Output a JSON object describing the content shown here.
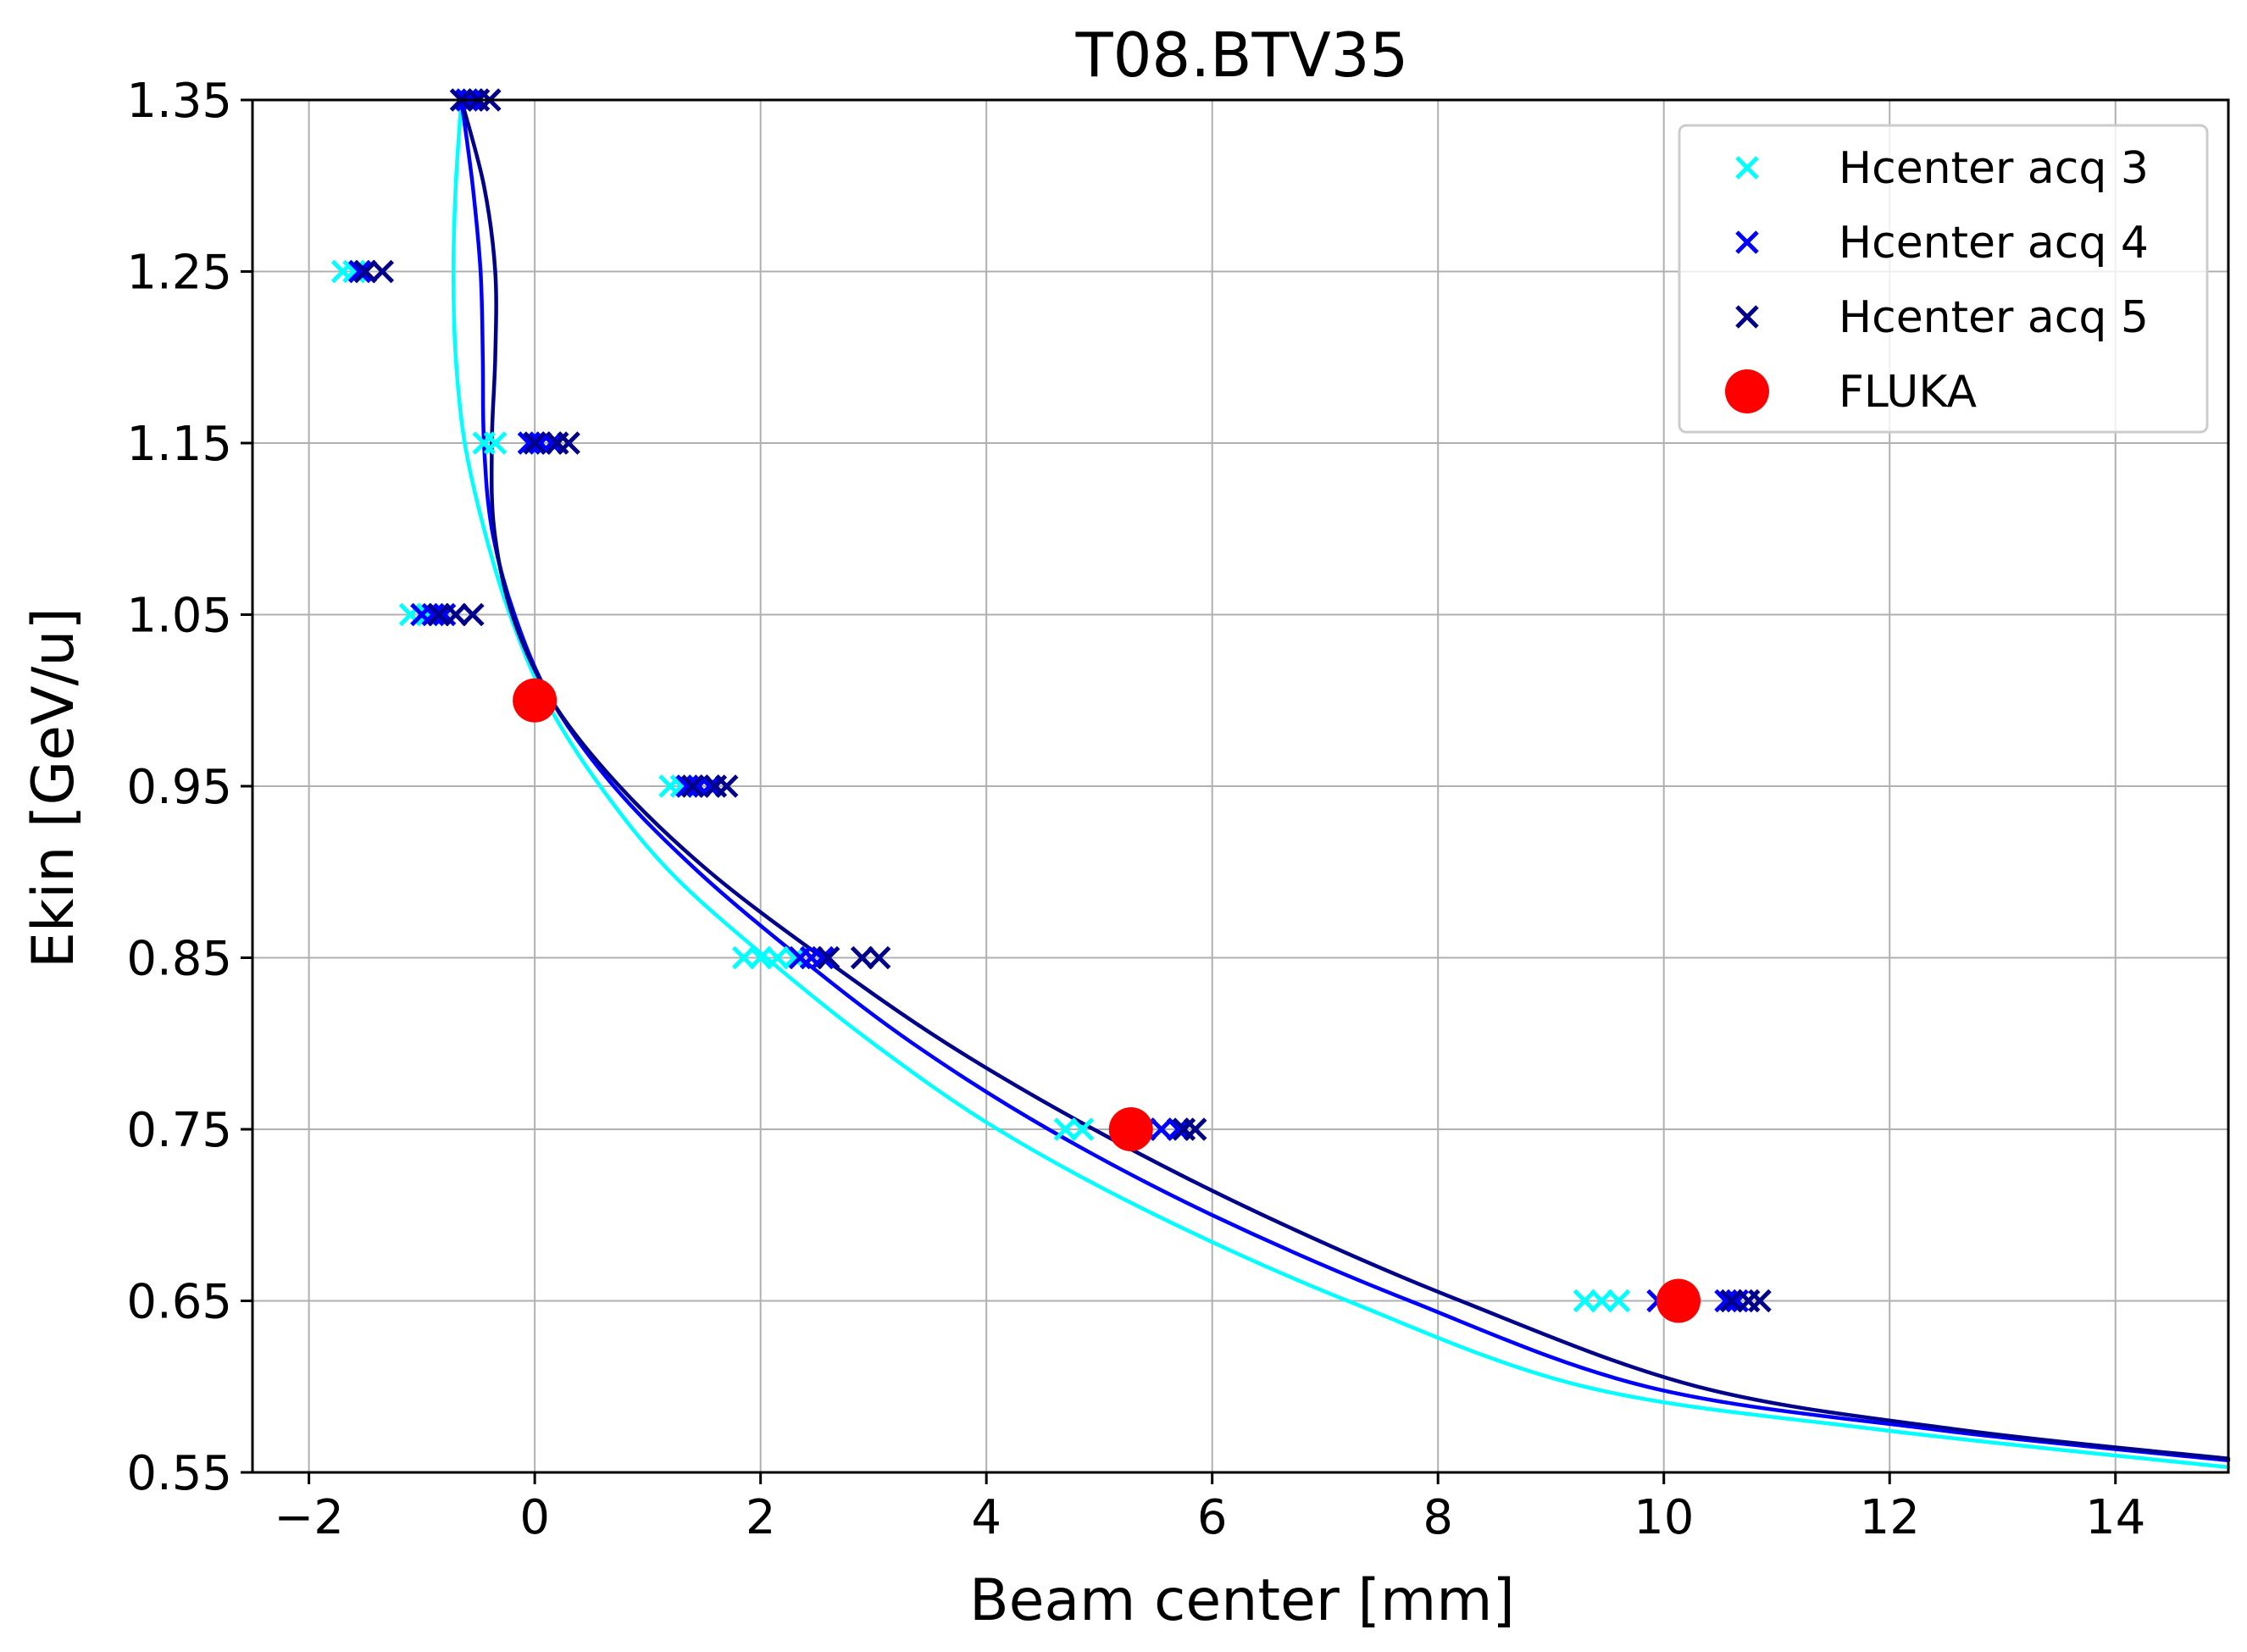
{
  "chart_data": {
    "type": "scatter",
    "title": "T08.BTV35",
    "xlabel": "Beam center [mm]",
    "ylabel": "Ekin [GeV/u]",
    "xlim": [
      -2.5,
      15
    ],
    "ylim": [
      0.55,
      1.35
    ],
    "grid": true,
    "legend_position": "top-right",
    "x_ticks": [
      -2,
      0,
      2,
      4,
      6,
      8,
      10,
      12,
      14
    ],
    "x_tick_labels": [
      "−2",
      "0",
      "2",
      "4",
      "6",
      "8",
      "10",
      "12",
      "14"
    ],
    "y_ticks": [
      0.55,
      0.65,
      0.75,
      0.85,
      0.95,
      1.05,
      1.15,
      1.25,
      1.35
    ],
    "y_tick_labels": [
      "0.55",
      "0.65",
      "0.75",
      "0.85",
      "0.95",
      "1.05",
      "1.15",
      "1.25",
      "1.35"
    ],
    "series": [
      {
        "name": "Hcenter acq 3",
        "marker": "x",
        "color": "#00ffff",
        "points": [
          [
            -0.65,
            1.35
          ],
          [
            -0.6,
            1.35
          ],
          [
            -1.7,
            1.25
          ],
          [
            -1.6,
            1.25
          ],
          [
            -0.45,
            1.15
          ],
          [
            -0.35,
            1.15
          ],
          [
            -0.05,
            1.15
          ],
          [
            -1.1,
            1.05
          ],
          [
            -1.0,
            1.05
          ],
          [
            -0.95,
            1.05
          ],
          [
            1.2,
            0.95
          ],
          [
            1.3,
            0.95
          ],
          [
            1.85,
            0.85
          ],
          [
            2.0,
            0.85
          ],
          [
            2.15,
            0.85
          ],
          [
            2.3,
            0.85
          ],
          [
            4.7,
            0.75
          ],
          [
            4.85,
            0.75
          ],
          [
            9.3,
            0.65
          ],
          [
            9.45,
            0.65
          ],
          [
            9.6,
            0.65
          ]
        ]
      },
      {
        "name": "Hcenter acq 4",
        "marker": "x",
        "color": "#0000ff",
        "points": [
          [
            -0.6,
            1.35
          ],
          [
            -0.55,
            1.35
          ],
          [
            -1.55,
            1.25
          ],
          [
            -1.5,
            1.25
          ],
          [
            -0.05,
            1.15
          ],
          [
            0.05,
            1.15
          ],
          [
            0.15,
            1.15
          ],
          [
            -1.0,
            1.05
          ],
          [
            -0.9,
            1.05
          ],
          [
            -0.8,
            1.05
          ],
          [
            1.35,
            0.95
          ],
          [
            1.45,
            0.95
          ],
          [
            1.55,
            0.95
          ],
          [
            2.35,
            0.85
          ],
          [
            2.45,
            0.85
          ],
          [
            2.55,
            0.85
          ],
          [
            5.4,
            0.75
          ],
          [
            5.55,
            0.75
          ],
          [
            5.7,
            0.75
          ],
          [
            9.95,
            0.65
          ],
          [
            10.55,
            0.65
          ],
          [
            10.65,
            0.65
          ]
        ]
      },
      {
        "name": "Hcenter acq 5",
        "marker": "x",
        "color": "#00008b",
        "points": [
          [
            -0.65,
            1.35
          ],
          [
            -0.5,
            1.35
          ],
          [
            -0.4,
            1.35
          ],
          [
            -1.5,
            1.25
          ],
          [
            -1.35,
            1.25
          ],
          [
            0.0,
            1.15
          ],
          [
            0.2,
            1.15
          ],
          [
            0.3,
            1.15
          ],
          [
            -0.85,
            1.05
          ],
          [
            -0.7,
            1.05
          ],
          [
            -0.55,
            1.05
          ],
          [
            1.4,
            0.95
          ],
          [
            1.6,
            0.95
          ],
          [
            1.7,
            0.95
          ],
          [
            2.6,
            0.85
          ],
          [
            2.9,
            0.85
          ],
          [
            3.05,
            0.85
          ],
          [
            5.75,
            0.75
          ],
          [
            5.85,
            0.75
          ],
          [
            10.6,
            0.65
          ],
          [
            10.75,
            0.65
          ],
          [
            10.85,
            0.65
          ]
        ]
      },
      {
        "name": "FLUKA",
        "marker": "o",
        "color": "#ff0000",
        "points": [
          [
            0.0,
            1.0
          ],
          [
            5.28,
            0.75
          ],
          [
            10.13,
            0.65
          ]
        ]
      }
    ],
    "curves": [
      {
        "color": "#00ffff",
        "points": [
          [
            -0.65,
            1.35
          ],
          [
            -0.7,
            1.3
          ],
          [
            -0.72,
            1.25
          ],
          [
            -0.7,
            1.2
          ],
          [
            -0.62,
            1.15
          ],
          [
            -0.45,
            1.1
          ],
          [
            -0.22,
            1.05
          ],
          [
            0.1,
            1.0
          ],
          [
            0.58,
            0.95
          ],
          [
            1.2,
            0.9
          ],
          [
            2.05,
            0.85
          ],
          [
            3.0,
            0.8
          ],
          [
            4.1,
            0.75
          ],
          [
            5.5,
            0.7
          ],
          [
            7.2,
            0.65
          ],
          [
            9.3,
            0.6
          ],
          [
            11.9,
            0.575
          ],
          [
            15.0,
            0.553
          ]
        ]
      },
      {
        "color": "#0000ff",
        "points": [
          [
            -0.65,
            1.35
          ],
          [
            -0.55,
            1.3
          ],
          [
            -0.48,
            1.25
          ],
          [
            -0.46,
            1.2
          ],
          [
            -0.45,
            1.15
          ],
          [
            -0.38,
            1.1
          ],
          [
            -0.18,
            1.05
          ],
          [
            0.15,
            1.0
          ],
          [
            0.7,
            0.95
          ],
          [
            1.45,
            0.9
          ],
          [
            2.35,
            0.85
          ],
          [
            3.35,
            0.8
          ],
          [
            4.55,
            0.75
          ],
          [
            6.0,
            0.7
          ],
          [
            7.75,
            0.65
          ],
          [
            9.85,
            0.6
          ],
          [
            12.4,
            0.575
          ],
          [
            15.0,
            0.557
          ]
        ]
      },
      {
        "color": "#00008b",
        "points": [
          [
            -0.65,
            1.35
          ],
          [
            -0.45,
            1.3
          ],
          [
            -0.35,
            1.25
          ],
          [
            -0.35,
            1.2
          ],
          [
            -0.38,
            1.15
          ],
          [
            -0.36,
            1.1
          ],
          [
            -0.2,
            1.05
          ],
          [
            0.15,
            1.0
          ],
          [
            0.75,
            0.95
          ],
          [
            1.55,
            0.9
          ],
          [
            2.55,
            0.85
          ],
          [
            3.65,
            0.8
          ],
          [
            4.95,
            0.75
          ],
          [
            6.45,
            0.7
          ],
          [
            8.2,
            0.65
          ],
          [
            10.3,
            0.6
          ],
          [
            12.6,
            0.575
          ],
          [
            15.0,
            0.558
          ]
        ]
      }
    ]
  }
}
